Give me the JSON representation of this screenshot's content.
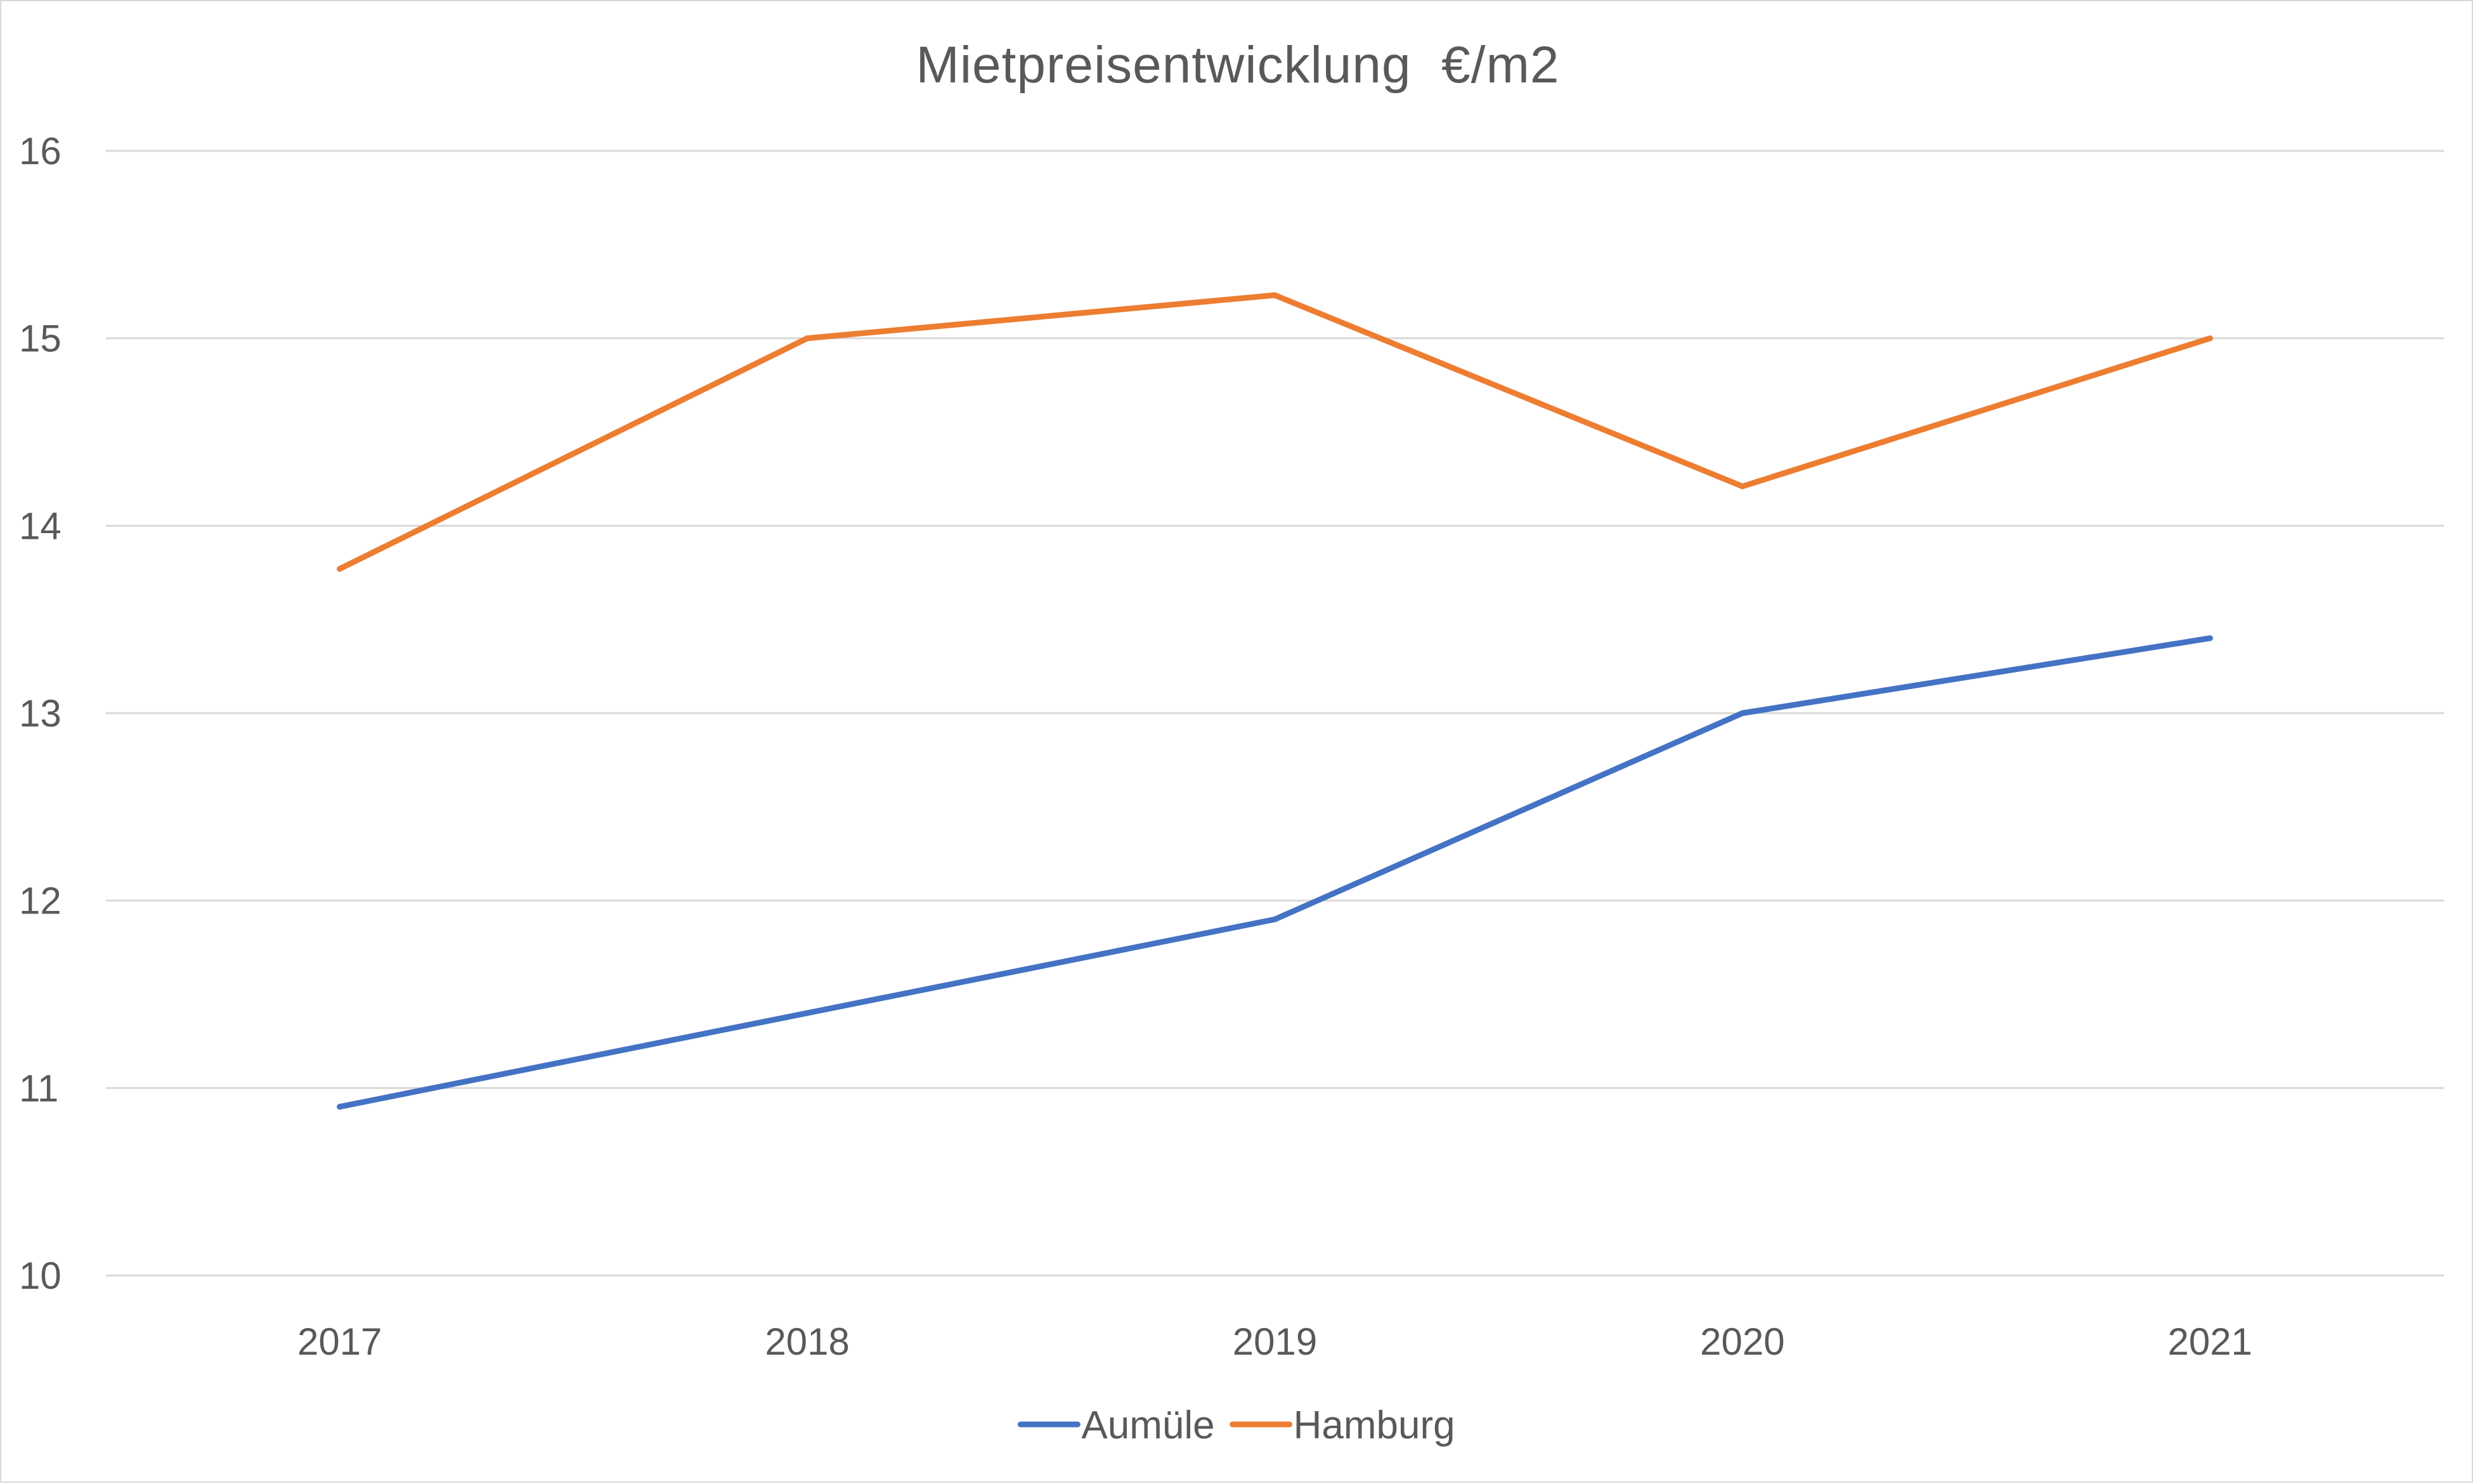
{
  "chart_data": {
    "type": "line",
    "title": "Mietpreisentwicklung  €/m2",
    "xlabel": "",
    "ylabel": "",
    "categories": [
      "2017",
      "2018",
      "2019",
      "2020",
      "2021"
    ],
    "ylim": [
      10,
      16
    ],
    "yticks": [
      10,
      11,
      12,
      13,
      14,
      15,
      16
    ],
    "grid": true,
    "legend_position": "bottom",
    "series": [
      {
        "name": "Aumüle",
        "color": "#4472C4",
        "values": [
          10.9,
          11.4,
          11.9,
          13.0,
          13.4
        ]
      },
      {
        "name": "Hamburg",
        "color": "#ED7D31",
        "values": [
          13.77,
          15.0,
          15.23,
          14.21,
          15.0
        ]
      }
    ]
  }
}
